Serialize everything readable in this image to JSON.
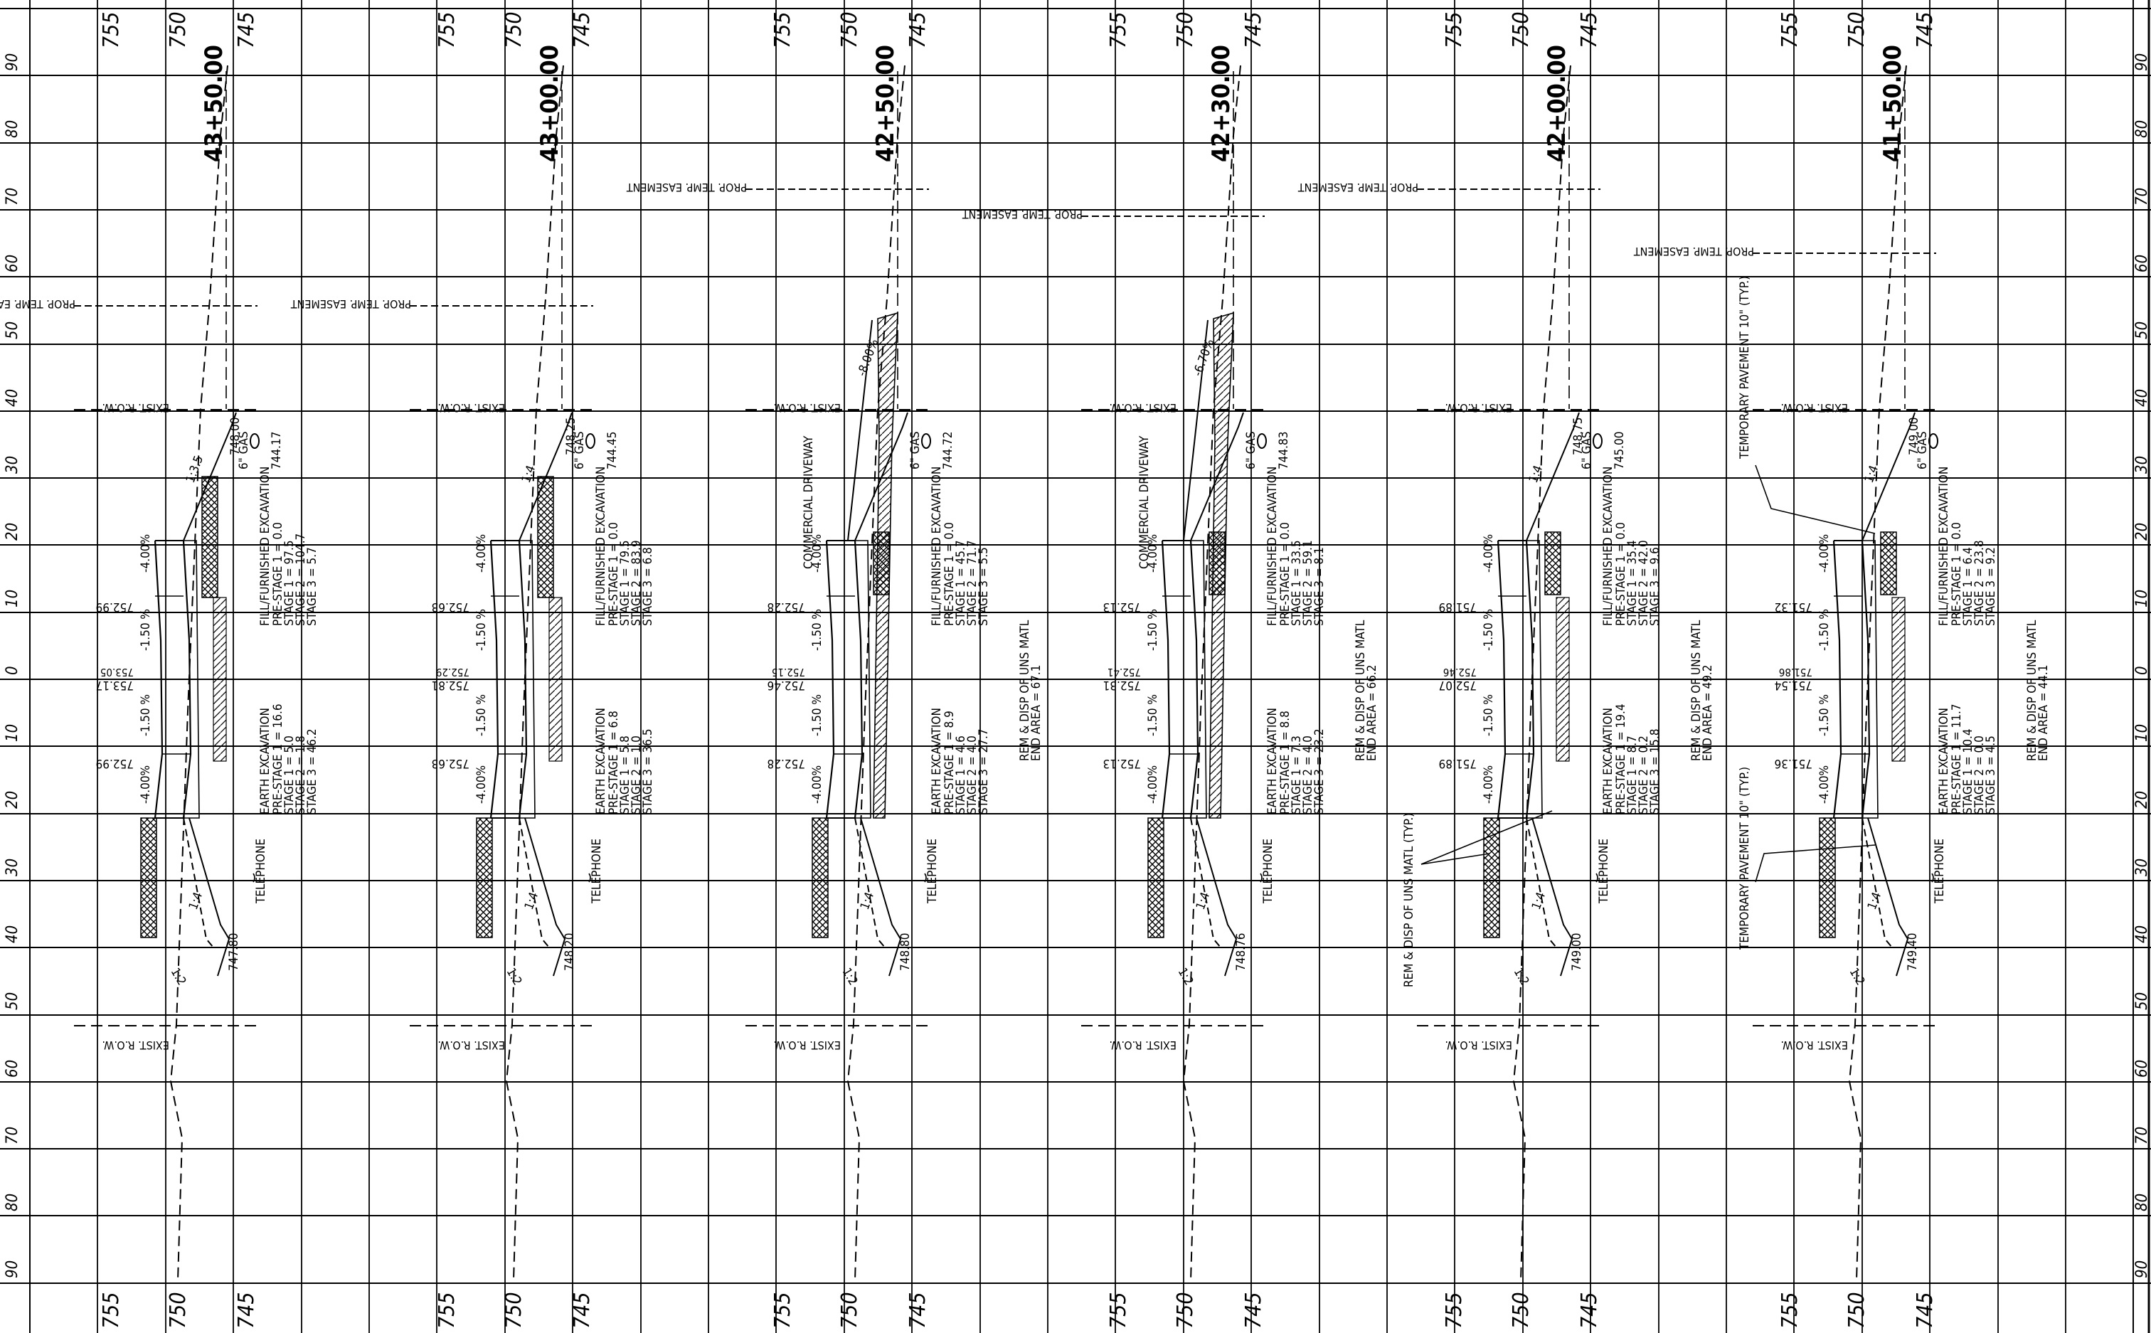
{
  "sheet": {
    "elevation_labels": [
      "755",
      "750",
      "745"
    ],
    "offset_labels": [
      "90",
      "80",
      "70",
      "60",
      "50",
      "40",
      "30",
      "20",
      "10",
      "0",
      "10",
      "20",
      "30",
      "40",
      "50",
      "60",
      "70",
      "80",
      "90"
    ],
    "common": {
      "exist_row": "EXIST. R.O.W.",
      "prop_temp_easement": "PROP. TEMP. EASEMENT",
      "telephone": "TELEPHONE",
      "gas": "6\" GAS",
      "slope_center_left": "-1.50 %",
      "slope_center_right": "-1.50 %",
      "slope_shoulder": "-4.00%",
      "slope_1_4": "1:4",
      "slope_1_2": "1:2"
    },
    "sections": [
      {
        "station": "43+50.00",
        "elev_top_1": "752.99",
        "elev_center_a": "753.17",
        "elev_center_b": "753.05",
        "elev_bottom_1": "752.99",
        "elev_top_slope": "748.00",
        "elev_bottom_slope": "747.80",
        "elev_ground_line": "744.17",
        "top_slope_ratio": "1:3.5",
        "driveway": "",
        "fill_title": "FILL/FURNISHED EXCAVATION",
        "fill_lines": [
          "PRE-STAGE 1 = 0.0",
          "STAGE 1 = 97.5",
          "STAGE 2 = 104.7",
          "STAGE 3 = 5.7"
        ],
        "earth_title": "EARTH EXCAVATION",
        "earth_lines": [
          "PRE-STAGE 1 = 16.6",
          "STAGE 1 = 5.0",
          "STAGE 2 = 1.8",
          "STAGE 3 = 46.2"
        ],
        "rem_lines": []
      },
      {
        "station": "43+00.00",
        "elev_top_1": "752.63",
        "elev_center_a": "752.81",
        "elev_center_b": "752.29",
        "elev_bottom_1": "752.63",
        "elev_top_slope": "748.25",
        "elev_bottom_slope": "748.20",
        "elev_ground_line": "744.45",
        "top_slope_ratio": "1:4",
        "driveway": "",
        "fill_title": "FILL/FURNISHED EXCAVATION",
        "fill_lines": [
          "PRE-STAGE 1 = 0.0",
          "STAGE 1 = 79.5",
          "STAGE 2 = 83.9",
          "STAGE 3 = 6.8"
        ],
        "earth_title": "EARTH EXCAVATION",
        "earth_lines": [
          "PRE-STAGE 1 = 6.8",
          "STAGE 1 = 5.8",
          "STAGE 2 = 1.0",
          "STAGE 3 = 36.5"
        ],
        "rem_lines": []
      },
      {
        "station": "42+50.00",
        "elev_top_1": "752.28",
        "elev_center_a": "752.46",
        "elev_center_b": "752.15",
        "elev_bottom_1": "752.28",
        "elev_top_slope": "",
        "elev_bottom_slope": "748.80",
        "elev_ground_line": "744.72",
        "top_slope_ratio": "-8.00%",
        "driveway": "COMMERCIAL DRIVEWAY",
        "fill_title": "FILL/FURNISHED EXCAVATION",
        "fill_lines": [
          "PRE-STAGE 1 = 0.0",
          "STAGE 1 = 45.7",
          "STAGE 2 = 71.7",
          "STAGE 3 = 5.5"
        ],
        "earth_title": "EARTH EXCAVATION",
        "earth_lines": [
          "PRE-STAGE 1 = 8.9",
          "STAGE 1 = 4.6",
          "STAGE 2 = 4.0",
          "STAGE 3 = 27.7"
        ],
        "rem_lines": [
          "REM & DISP OF UNS MATL",
          "END AREA = 67.1"
        ]
      },
      {
        "station": "42+30.00",
        "elev_top_1": "752.13",
        "elev_center_a": "752.31",
        "elev_center_b": "752.41",
        "elev_bottom_1": "752.13",
        "elev_top_slope": "",
        "elev_bottom_slope": "748.76",
        "elev_ground_line": "744.83",
        "top_slope_ratio": "-6.70%",
        "driveway": "COMMERCIAL DRIVEWAY",
        "fill_title": "FILL/FURNISHED EXCAVATION",
        "fill_lines": [
          "PRE-STAGE 1 = 0.0",
          "STAGE 1 = 33.5",
          "STAGE 2 = 59.1",
          "STAGE 3 = 8.1"
        ],
        "earth_title": "EARTH EXCAVATION",
        "earth_lines": [
          "PRE-STAGE 1 = 8.8",
          "STAGE 1 = 7.3",
          "STAGE 2 = 4.0",
          "STAGE 3 = 23.2"
        ],
        "rem_lines": [
          "REM & DISP OF UNS MATL",
          "END AREA = 66.2"
        ]
      },
      {
        "station": "42+00.00",
        "elev_top_1": "751.89",
        "elev_center_a": "752.07",
        "elev_center_b": "752.46",
        "elev_bottom_1": "751.89",
        "elev_top_slope": "748.75",
        "elev_bottom_slope": "749.00",
        "elev_ground_line": "745.00",
        "top_slope_ratio": "1:4",
        "driveway": "",
        "fill_title": "FILL/FURNISHED EXCAVATION",
        "fill_lines": [
          "PRE-STAGE 1 = 0.0",
          "STAGE 1 = 35.4",
          "STAGE 2 = 42.0",
          "STAGE 3 = 9.6"
        ],
        "earth_title": "EARTH EXCAVATION",
        "earth_lines": [
          "PRE-STAGE 1 = 19.4",
          "STAGE 1 = 8.7",
          "STAGE 2 = 0.2",
          "STAGE 3 = 15.8"
        ],
        "rem_lines": [
          "REM & DISP OF UNS MATL",
          "END AREA = 49.2"
        ],
        "callout": "REM & DISP OF UNS MATL (TYP.)"
      },
      {
        "station": "41+50.00",
        "elev_top_1": "751.32",
        "elev_center_a": "751.54",
        "elev_center_b": "751.86",
        "elev_bottom_1": "751.36",
        "elev_top_slope": "749.00",
        "elev_bottom_slope": "749.40",
        "elev_ground_line": "",
        "top_slope_ratio": "1:4",
        "driveway": "",
        "fill_title": "FILL/FURNISHED EXCAVATION",
        "fill_lines": [
          "PRE-STAGE 1 = 0.0",
          "STAGE 1 = 6.4",
          "STAGE 2 = 23.8",
          "STAGE 3 = 9.2"
        ],
        "earth_title": "EARTH EXCAVATION",
        "earth_lines": [
          "PRE-STAGE 1 = 11.7",
          "STAGE 1 = 10.4",
          "STAGE 2 = 0.0",
          "STAGE 3 = 4.5"
        ],
        "rem_lines": [
          "REM & DISP OF UNS MATL",
          "END AREA = 44.1"
        ],
        "pavement_note_top": "TEMPORARY PAVEMENT 10\" (TYP.)",
        "pavement_note_bottom": "TEMPORARY PAVEMENT 10\" (TYP.)"
      }
    ]
  }
}
